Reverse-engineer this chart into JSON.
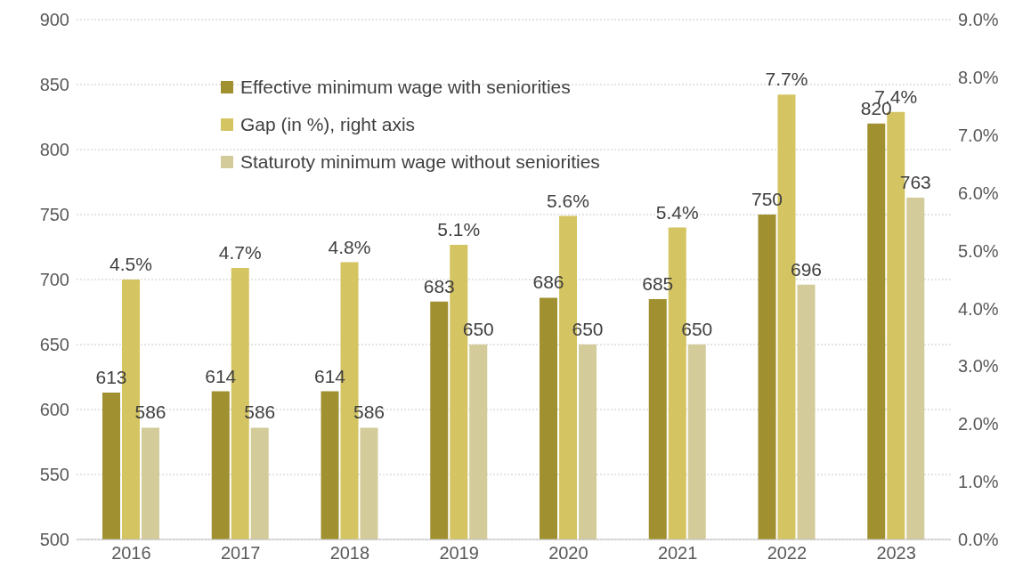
{
  "chart_data": {
    "type": "bar",
    "categories": [
      "2016",
      "2017",
      "2018",
      "2019",
      "2020",
      "2021",
      "2022",
      "2023"
    ],
    "series": [
      {
        "name": "Effective minimum wage with seniorities",
        "color": "#a09030",
        "values": [
          613,
          614,
          614,
          683,
          686,
          685,
          750,
          820
        ],
        "value_labels": [
          "613",
          "614",
          "614",
          "683",
          "686",
          "685",
          "750",
          "820"
        ]
      },
      {
        "name": "Gap (in %), right axis",
        "color": "#d4c462",
        "axis": "y2",
        "values": [
          4.5,
          4.7,
          4.8,
          5.1,
          5.6,
          5.4,
          7.7,
          7.4
        ],
        "value_labels": [
          "4.5%",
          "4.7%",
          "4.8%",
          "5.1%",
          "5.6%",
          "5.4%",
          "7.7%",
          "7.4%"
        ]
      },
      {
        "name": "Staturoty minimum wage without seniorities",
        "color": "#d3cb9a",
        "values": [
          586,
          586,
          586,
          650,
          650,
          650,
          696,
          763
        ],
        "value_labels": [
          "586",
          "586",
          "586",
          "650",
          "650",
          "650",
          "696",
          "763"
        ]
      }
    ],
    "ylim": [
      500,
      900
    ],
    "yticks": [
      500,
      550,
      600,
      650,
      700,
      750,
      800,
      850,
      900
    ],
    "y2lim": [
      0,
      9
    ],
    "y2ticks": [
      {
        "value": 0,
        "label": "0.0%"
      },
      {
        "value": 1,
        "label": "1.0%"
      },
      {
        "value": 2,
        "label": "2.0%"
      },
      {
        "value": 3,
        "label": "3.0%"
      },
      {
        "value": 4,
        "label": "4.0%"
      },
      {
        "value": 5,
        "label": "5.0%"
      },
      {
        "value": 6,
        "label": "6.0%"
      },
      {
        "value": 7,
        "label": "7.0%"
      },
      {
        "value": 8,
        "label": "8.0%"
      },
      {
        "value": 9,
        "label": "9.0%"
      }
    ],
    "grid": "y",
    "legend": "top left"
  }
}
